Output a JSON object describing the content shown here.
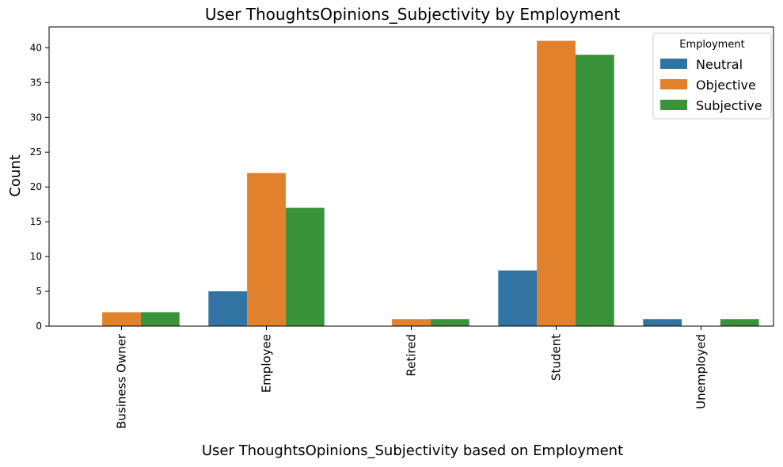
{
  "chart_data": {
    "type": "bar",
    "title": "User ThoughtsOpinions_Subjectivity by Employment",
    "xlabel": "User ThoughtsOpinions_Subjectivity based on Employment",
    "ylabel": "Count",
    "categories": [
      "Business Owner",
      "Employee",
      "Retired",
      "Student",
      "Unemployed"
    ],
    "ylim": [
      0,
      43
    ],
    "yticks": [
      0,
      5,
      10,
      15,
      20,
      25,
      30,
      35,
      40
    ],
    "grid": false,
    "legend": {
      "title": "Employment",
      "placement": "top-right"
    },
    "series": [
      {
        "name": "Neutral",
        "color": "#3274a1",
        "values": [
          0,
          5,
          0,
          8,
          1
        ]
      },
      {
        "name": "Objective",
        "color": "#e1812c",
        "values": [
          2,
          22,
          1,
          41,
          0
        ]
      },
      {
        "name": "Subjective",
        "color": "#3a923a",
        "values": [
          2,
          17,
          1,
          39,
          1
        ]
      }
    ]
  }
}
